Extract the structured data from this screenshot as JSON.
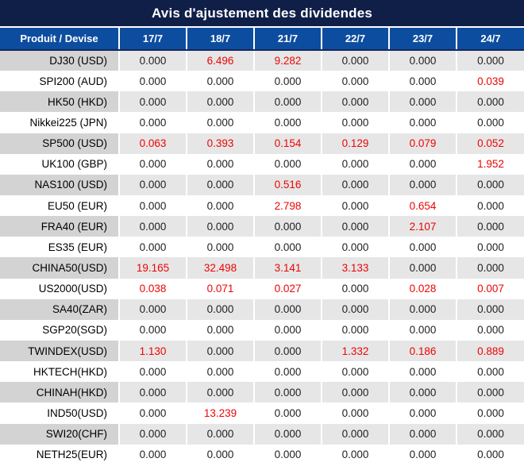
{
  "title": "Avis d'ajustement des dividendes",
  "colors": {
    "title_bg": "#101f48",
    "header_bg": "#0d4da0",
    "header_border": "#13275c",
    "stripe_product": "#d3d3d3",
    "stripe_value": "#e6e6e6",
    "red": "#ee0404"
  },
  "table": {
    "product_header": "Produit / Devise",
    "date_headers": [
      "17/7",
      "18/7",
      "21/7",
      "22/7",
      "23/7",
      "24/7"
    ],
    "rows": [
      {
        "product": "DJ30 (USD)",
        "values": [
          "0.000",
          "6.496",
          "9.282",
          "0.000",
          "0.000",
          "0.000"
        ],
        "red": [
          false,
          true,
          true,
          false,
          false,
          false
        ]
      },
      {
        "product": "SPI200 (AUD)",
        "values": [
          "0.000",
          "0.000",
          "0.000",
          "0.000",
          "0.000",
          "0.039"
        ],
        "red": [
          false,
          false,
          false,
          false,
          false,
          true
        ]
      },
      {
        "product": "HK50 (HKD)",
        "values": [
          "0.000",
          "0.000",
          "0.000",
          "0.000",
          "0.000",
          "0.000"
        ],
        "red": [
          false,
          false,
          false,
          false,
          false,
          false
        ]
      },
      {
        "product": "Nikkei225 (JPN)",
        "values": [
          "0.000",
          "0.000",
          "0.000",
          "0.000",
          "0.000",
          "0.000"
        ],
        "red": [
          false,
          false,
          false,
          false,
          false,
          false
        ]
      },
      {
        "product": "SP500 (USD)",
        "values": [
          "0.063",
          "0.393",
          "0.154",
          "0.129",
          "0.079",
          "0.052"
        ],
        "red": [
          true,
          true,
          true,
          true,
          true,
          true
        ]
      },
      {
        "product": "UK100 (GBP)",
        "values": [
          "0.000",
          "0.000",
          "0.000",
          "0.000",
          "0.000",
          "1.952"
        ],
        "red": [
          false,
          false,
          false,
          false,
          false,
          true
        ]
      },
      {
        "product": "NAS100 (USD)",
        "values": [
          "0.000",
          "0.000",
          "0.516",
          "0.000",
          "0.000",
          "0.000"
        ],
        "red": [
          false,
          false,
          true,
          false,
          false,
          false
        ]
      },
      {
        "product": "EU50 (EUR)",
        "values": [
          "0.000",
          "0.000",
          "2.798",
          "0.000",
          "0.654",
          "0.000"
        ],
        "red": [
          false,
          false,
          true,
          false,
          true,
          false
        ]
      },
      {
        "product": "FRA40 (EUR)",
        "values": [
          "0.000",
          "0.000",
          "0.000",
          "0.000",
          "2.107",
          "0.000"
        ],
        "red": [
          false,
          false,
          false,
          false,
          true,
          false
        ]
      },
      {
        "product": "ES35 (EUR)",
        "values": [
          "0.000",
          "0.000",
          "0.000",
          "0.000",
          "0.000",
          "0.000"
        ],
        "red": [
          false,
          false,
          false,
          false,
          false,
          false
        ]
      },
      {
        "product": "CHINA50(USD)",
        "values": [
          "19.165",
          "32.498",
          "3.141",
          "3.133",
          "0.000",
          "0.000"
        ],
        "red": [
          true,
          true,
          true,
          true,
          false,
          false
        ]
      },
      {
        "product": "US2000(USD)",
        "values": [
          "0.038",
          "0.071",
          "0.027",
          "0.000",
          "0.028",
          "0.007"
        ],
        "red": [
          true,
          true,
          true,
          false,
          true,
          true
        ]
      },
      {
        "product": "SA40(ZAR)",
        "values": [
          "0.000",
          "0.000",
          "0.000",
          "0.000",
          "0.000",
          "0.000"
        ],
        "red": [
          false,
          false,
          false,
          false,
          false,
          false
        ]
      },
      {
        "product": "SGP20(SGD)",
        "values": [
          "0.000",
          "0.000",
          "0.000",
          "0.000",
          "0.000",
          "0.000"
        ],
        "red": [
          false,
          false,
          false,
          false,
          false,
          false
        ]
      },
      {
        "product": "TWINDEX(USD)",
        "values": [
          "1.130",
          "0.000",
          "0.000",
          "1.332",
          "0.186",
          "0.889"
        ],
        "red": [
          true,
          false,
          false,
          true,
          true,
          true
        ]
      },
      {
        "product": "HKTECH(HKD)",
        "values": [
          "0.000",
          "0.000",
          "0.000",
          "0.000",
          "0.000",
          "0.000"
        ],
        "red": [
          false,
          false,
          false,
          false,
          false,
          false
        ]
      },
      {
        "product": "CHINAH(HKD)",
        "values": [
          "0.000",
          "0.000",
          "0.000",
          "0.000",
          "0.000",
          "0.000"
        ],
        "red": [
          false,
          false,
          false,
          false,
          false,
          false
        ]
      },
      {
        "product": "IND50(USD)",
        "values": [
          "0.000",
          "13.239",
          "0.000",
          "0.000",
          "0.000",
          "0.000"
        ],
        "red": [
          false,
          true,
          false,
          false,
          false,
          false
        ]
      },
      {
        "product": "SWI20(CHF)",
        "values": [
          "0.000",
          "0.000",
          "0.000",
          "0.000",
          "0.000",
          "0.000"
        ],
        "red": [
          false,
          false,
          false,
          false,
          false,
          false
        ]
      },
      {
        "product": "NETH25(EUR)",
        "values": [
          "0.000",
          "0.000",
          "0.000",
          "0.000",
          "0.000",
          "0.000"
        ],
        "red": [
          false,
          false,
          false,
          false,
          false,
          false
        ]
      }
    ]
  }
}
